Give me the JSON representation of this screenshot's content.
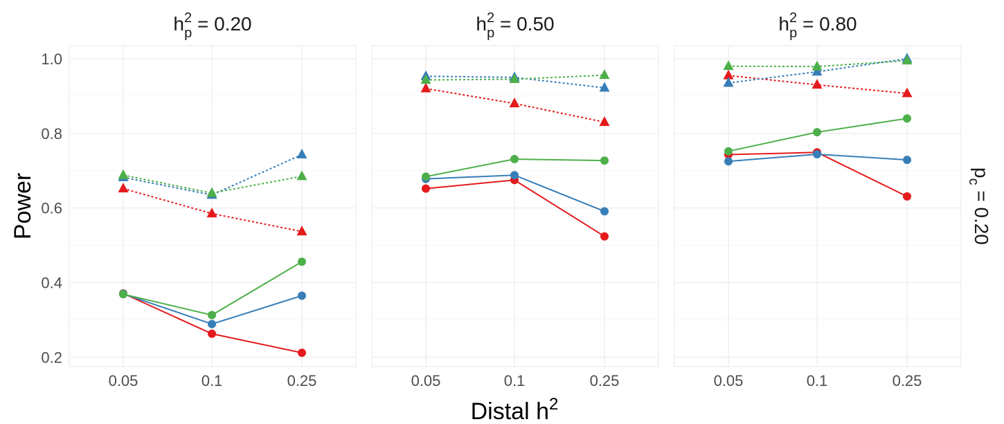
{
  "chart_data": {
    "type": "line",
    "facet_titles": [
      {
        "base": "h",
        "sup": "2",
        "sub": "p",
        "rest": " = 0.20"
      },
      {
        "base": "h",
        "sup": "2",
        "sub": "p",
        "rest": " = 0.50"
      },
      {
        "base": "h",
        "sup": "2",
        "sub": "p",
        "rest": " = 0.80"
      }
    ],
    "row_strip": {
      "base": "p",
      "sub": "c",
      "rest": " = 0.20"
    },
    "xlabel": {
      "base": "Distal h",
      "sup": "2"
    },
    "ylabel": "Power",
    "categories": [
      "0.05",
      "0.1",
      "0.25"
    ],
    "ylim": [
      0.175,
      1.035
    ],
    "yticks": [
      "0.2",
      "0.4",
      "0.6",
      "0.8",
      "1.0"
    ],
    "ytick_values": [
      0.2,
      0.4,
      0.6,
      0.8,
      1.0
    ],
    "grid": true,
    "legend": "none",
    "colors": {
      "red": "#e41a1c",
      "blue": "#377eb8",
      "green": "#4daf4a"
    },
    "panels": [
      {
        "series": [
          {
            "color": "red",
            "marker": "circle",
            "line": "solid",
            "values": [
              0.371,
              0.263,
              0.212
            ]
          },
          {
            "color": "blue",
            "marker": "circle",
            "line": "solid",
            "values": [
              0.37,
              0.289,
              0.365
            ]
          },
          {
            "color": "green",
            "marker": "circle",
            "line": "solid",
            "values": [
              0.369,
              0.313,
              0.456
            ]
          },
          {
            "color": "red",
            "marker": "triangle",
            "line": "dotted",
            "values": [
              0.652,
              0.585,
              0.537
            ]
          },
          {
            "color": "blue",
            "marker": "triangle",
            "line": "dotted",
            "values": [
              0.682,
              0.635,
              0.743
            ]
          },
          {
            "color": "green",
            "marker": "triangle",
            "line": "dotted",
            "values": [
              0.688,
              0.64,
              0.685
            ]
          }
        ]
      },
      {
        "series": [
          {
            "color": "red",
            "marker": "circle",
            "line": "solid",
            "values": [
              0.652,
              0.675,
              0.524
            ]
          },
          {
            "color": "blue",
            "marker": "circle",
            "line": "solid",
            "values": [
              0.678,
              0.688,
              0.591
            ]
          },
          {
            "color": "green",
            "marker": "circle",
            "line": "solid",
            "values": [
              0.684,
              0.731,
              0.727
            ]
          },
          {
            "color": "red",
            "marker": "triangle",
            "line": "dotted",
            "values": [
              0.92,
              0.88,
              0.83
            ]
          },
          {
            "color": "blue",
            "marker": "triangle",
            "line": "dotted",
            "values": [
              0.953,
              0.95,
              0.922
            ]
          },
          {
            "color": "green",
            "marker": "triangle",
            "line": "dotted",
            "values": [
              0.943,
              0.945,
              0.956
            ]
          }
        ]
      },
      {
        "series": [
          {
            "color": "red",
            "marker": "circle",
            "line": "solid",
            "values": [
              0.743,
              0.749,
              0.631
            ]
          },
          {
            "color": "blue",
            "marker": "circle",
            "line": "solid",
            "values": [
              0.725,
              0.744,
              0.729
            ]
          },
          {
            "color": "green",
            "marker": "circle",
            "line": "solid",
            "values": [
              0.752,
              0.803,
              0.84
            ]
          },
          {
            "color": "red",
            "marker": "triangle",
            "line": "dotted",
            "values": [
              0.955,
              0.93,
              0.907
            ]
          },
          {
            "color": "blue",
            "marker": "triangle",
            "line": "dotted",
            "values": [
              0.935,
              0.965,
              1.0
            ]
          },
          {
            "color": "green",
            "marker": "triangle",
            "line": "dotted",
            "values": [
              0.98,
              0.979,
              0.995
            ]
          }
        ]
      }
    ]
  }
}
